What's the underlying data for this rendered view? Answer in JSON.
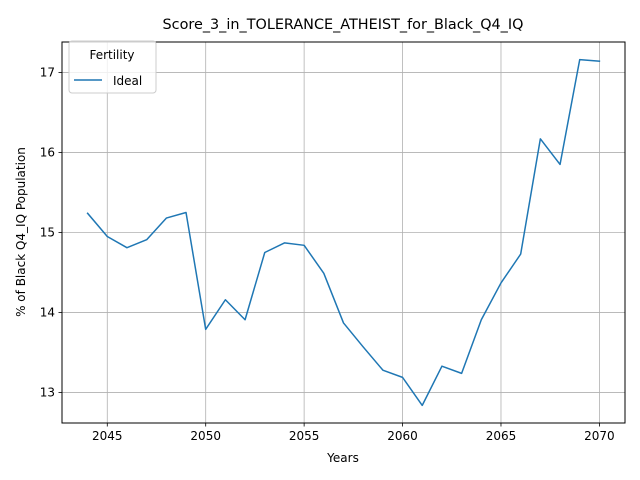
{
  "chart_data": {
    "type": "line",
    "title": "Score_3_in_TOLERANCE_ATHEIST_for_Black_Q4_IQ",
    "xlabel": "Years",
    "ylabel": "% of Black Q4_IQ Population",
    "xlim": [
      2042.7,
      2071.3
    ],
    "ylim": [
      12.62,
      17.38
    ],
    "xticks": [
      2045,
      2050,
      2055,
      2060,
      2065,
      2070
    ],
    "yticks": [
      13,
      14,
      15,
      16,
      17
    ],
    "grid": true,
    "legend": {
      "title": "Fertility",
      "position": "upper-left"
    },
    "series": [
      {
        "name": "Ideal",
        "color": "#1f77b4",
        "x": [
          2044,
          2045,
          2046,
          2047,
          2048,
          2049,
          2050,
          2051,
          2052,
          2053,
          2054,
          2055,
          2056,
          2057,
          2058,
          2059,
          2060,
          2061,
          2062,
          2063,
          2064,
          2065,
          2066,
          2067,
          2068,
          2069,
          2070
        ],
        "y": [
          15.24,
          14.95,
          14.81,
          14.91,
          15.18,
          15.25,
          13.79,
          14.16,
          13.91,
          14.75,
          14.87,
          14.84,
          14.49,
          13.87,
          13.57,
          13.28,
          13.19,
          12.84,
          13.33,
          13.24,
          13.91,
          14.37,
          14.73,
          16.17,
          15.85,
          17.16,
          17.14
        ]
      }
    ]
  }
}
